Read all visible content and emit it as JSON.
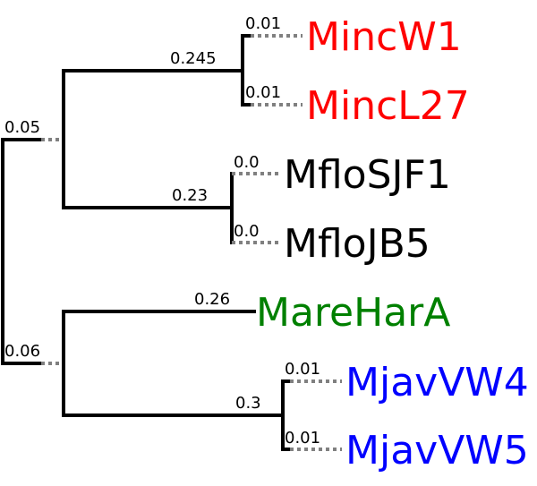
{
  "branch_labels": {
    "root_upper": "0.05",
    "root_lower": "0.06",
    "clade_minc": "0.245",
    "clade_mflo": "0.23",
    "mare": "0.26",
    "clade_mjav": "0.3",
    "mincw1": "0.01",
    "mincl27": "0.01",
    "mflosjf1": "0.0",
    "mflojb5": "0.0",
    "mjavvw4": "0.01",
    "mjavvw5": "0.01"
  },
  "leaves": {
    "mincw1": "MincW1",
    "mincl27": "MincL27",
    "mflosjf1": "MfloSJF1",
    "mflojb5": "MfloJB5",
    "marehara": "MareHarA",
    "mjavvw4": "MjavVW4",
    "mjavvw5": "MjavVW5"
  },
  "colors": {
    "minc": "#ff0000",
    "mflo": "#000000",
    "mare": "#008000",
    "mjav": "#0000ff",
    "branch": "#000000",
    "dotted": "#808080"
  }
}
